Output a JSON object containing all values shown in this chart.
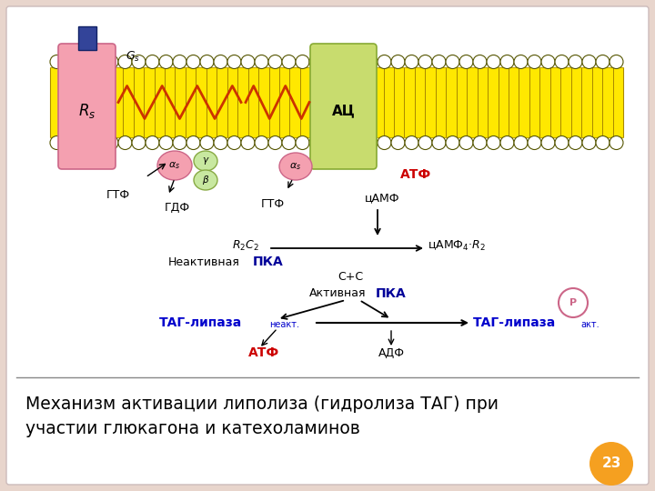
{
  "slide_bg": "#e8d5cc",
  "white_box": "#ffffff",
  "membrane_yellow": "#FFE800",
  "membrane_dark": "#c8a800",
  "receptor_color": "#F4A0B0",
  "receptor_edge": "#cc6688",
  "ac_color": "#C8DC6E",
  "ac_edge": "#88aa33",
  "g_color_pink": "#F4A0B0",
  "g_color_green": "#c8e8a0",
  "g_edge_pink": "#cc6688",
  "g_edge_green": "#88aa44",
  "blue_ligand": "#334499",
  "zigzag_color": "#CC3300",
  "red_text": "#CC0000",
  "blue_text": "#0000CC",
  "navy_text": "#000099",
  "black_text": "#111111",
  "gray_line": "#888888",
  "orange_circle": "#f5a020",
  "page_num": "23",
  "title_line1": "Механизм активации липолиза (гидролиза ТАГ) при",
  "title_line2": "участии глюкагона и катехоламинов",
  "title_fontsize": 13.5
}
